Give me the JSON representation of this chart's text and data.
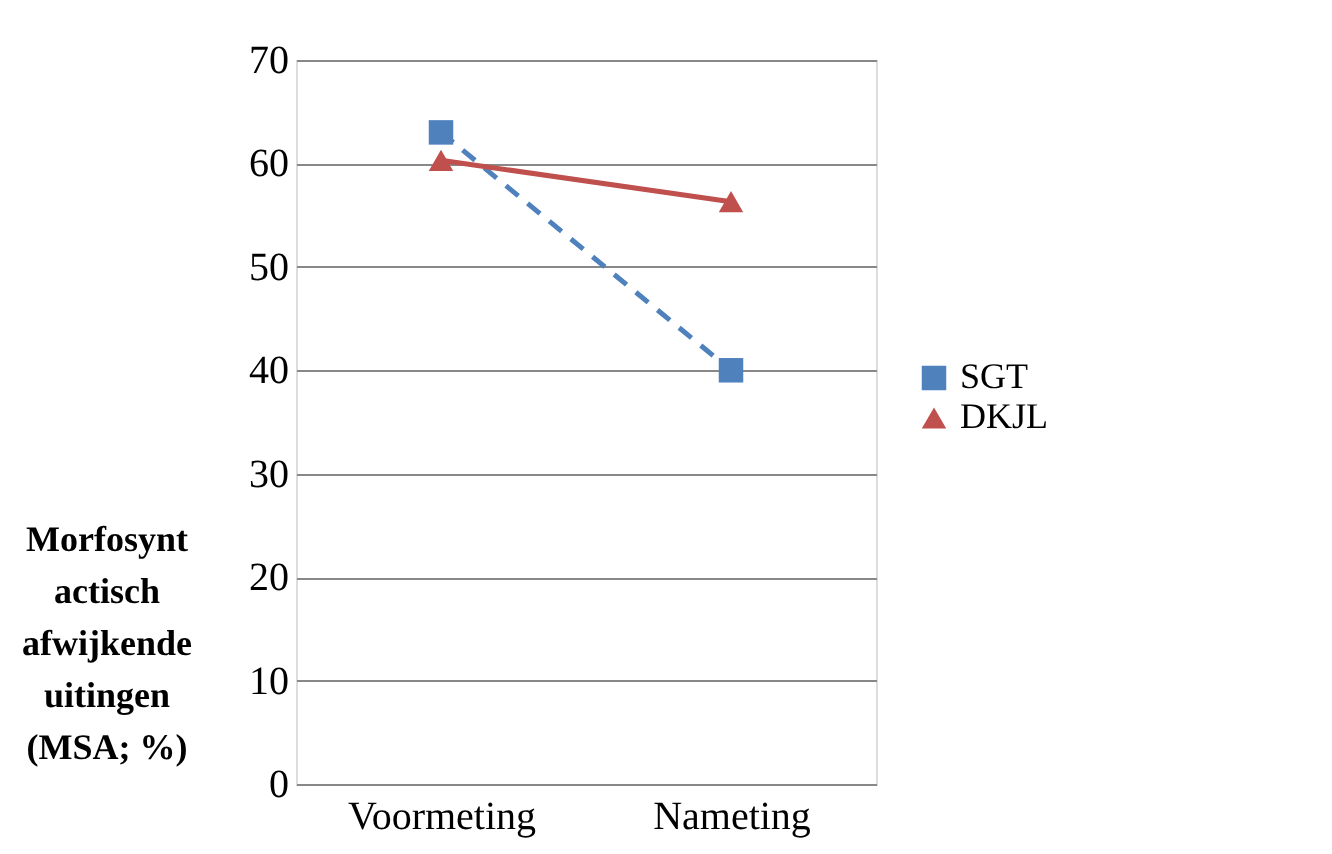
{
  "chart_data": {
    "type": "line",
    "ylabel": "Morfosynt\nactisch\nafwijkende\nuitingen\n(MSA; %)",
    "categories": [
      "Voormeting",
      "Nameting"
    ],
    "series": [
      {
        "name": "SGT",
        "color": "#4f81bd",
        "values": [
          63,
          40
        ],
        "marker": "square",
        "line_style": "dashed"
      },
      {
        "name": "DKJL",
        "color": "#c0504d",
        "values": [
          60.3,
          56.3
        ],
        "marker": "triangle",
        "line_style": "solid"
      }
    ],
    "ylim": [
      0,
      70
    ],
    "yticks": [
      0,
      10,
      20,
      30,
      40,
      50,
      60,
      70
    ],
    "grid": "y",
    "legend": "right"
  }
}
